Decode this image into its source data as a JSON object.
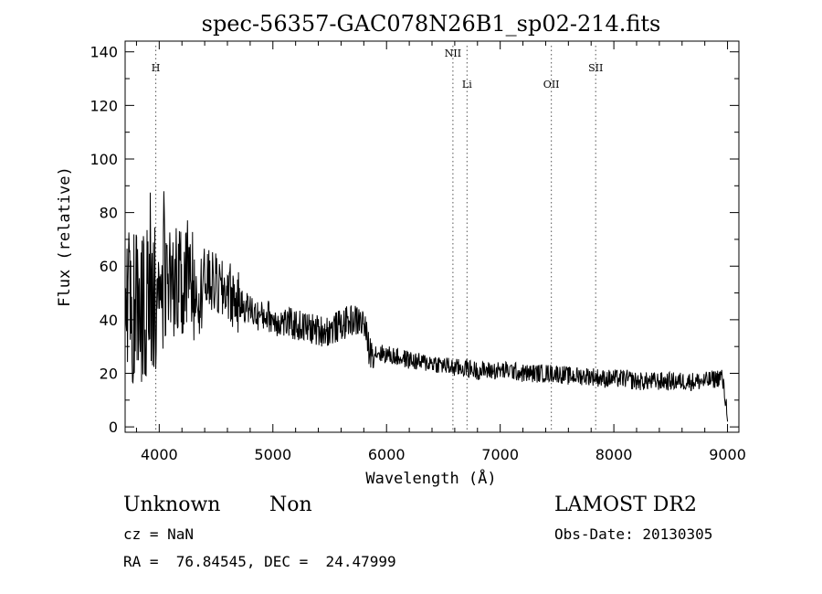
{
  "chart_data": {
    "type": "line",
    "title": "spec-56357-GAC078N26B1_sp02-214.fits",
    "xlabel": "Wavelength (Å)",
    "ylabel": "Flux (relative)",
    "xlim": [
      3700,
      9100
    ],
    "ylim": [
      -2,
      144
    ],
    "xticks": [
      4000,
      5000,
      6000,
      7000,
      8000,
      9000
    ],
    "yticks": [
      0,
      20,
      40,
      60,
      80,
      100,
      120,
      140
    ],
    "grid": false,
    "lines": [
      {
        "label": "H",
        "x": 3970
      },
      {
        "label": "NII",
        "x": 6584
      },
      {
        "label": "Li",
        "x": 6708
      },
      {
        "label": "OII",
        "x": 7450
      },
      {
        "label": "SII",
        "x": 7840
      }
    ],
    "series": [
      {
        "x": [
          3700,
          3750,
          3800,
          3850,
          3900,
          3950,
          4000,
          4050,
          4100,
          4150,
          4200,
          4250,
          4300,
          4350,
          4400,
          4450,
          4500,
          4550,
          4600,
          4650,
          4700,
          4750,
          4800,
          4850,
          4900,
          4950,
          5000,
          5100,
          5200,
          5300,
          5400,
          5500,
          5600,
          5700,
          5800,
          5850,
          5900,
          6000,
          6100,
          6200,
          6300,
          6400,
          6500,
          6600,
          6700,
          6800,
          6900,
          7000,
          7100,
          7200,
          7300,
          7400,
          7500,
          7600,
          7700,
          7800,
          7900,
          8000,
          8100,
          8200,
          8300,
          8400,
          8500,
          8600,
          8700,
          8800,
          8900,
          8950,
          9000
        ],
        "values": [
          40,
          48,
          44,
          42,
          46,
          50,
          48,
          52,
          55,
          54,
          50,
          56,
          54,
          52,
          55,
          54,
          53,
          50,
          52,
          48,
          46,
          45,
          44,
          42,
          41,
          42,
          40,
          39,
          38,
          37,
          36,
          36,
          38,
          40,
          39,
          28,
          28,
          27,
          26,
          25,
          24,
          24,
          23,
          22,
          22,
          21,
          21,
          21,
          21,
          20,
          20,
          20,
          20,
          19,
          19,
          19,
          18,
          18,
          18,
          17,
          17,
          17,
          17,
          17,
          17,
          17,
          18,
          19,
          5
        ]
      }
    ],
    "lower_left": {
      "class_label": "Unknown",
      "subclass_label": "Non",
      "redshift": "cz = NaN",
      "coords": "RA =  76.84545, DEC =  24.47999"
    },
    "lower_right": {
      "survey": "LAMOST DR2",
      "obs_date": "Obs-Date: 20130305"
    }
  }
}
